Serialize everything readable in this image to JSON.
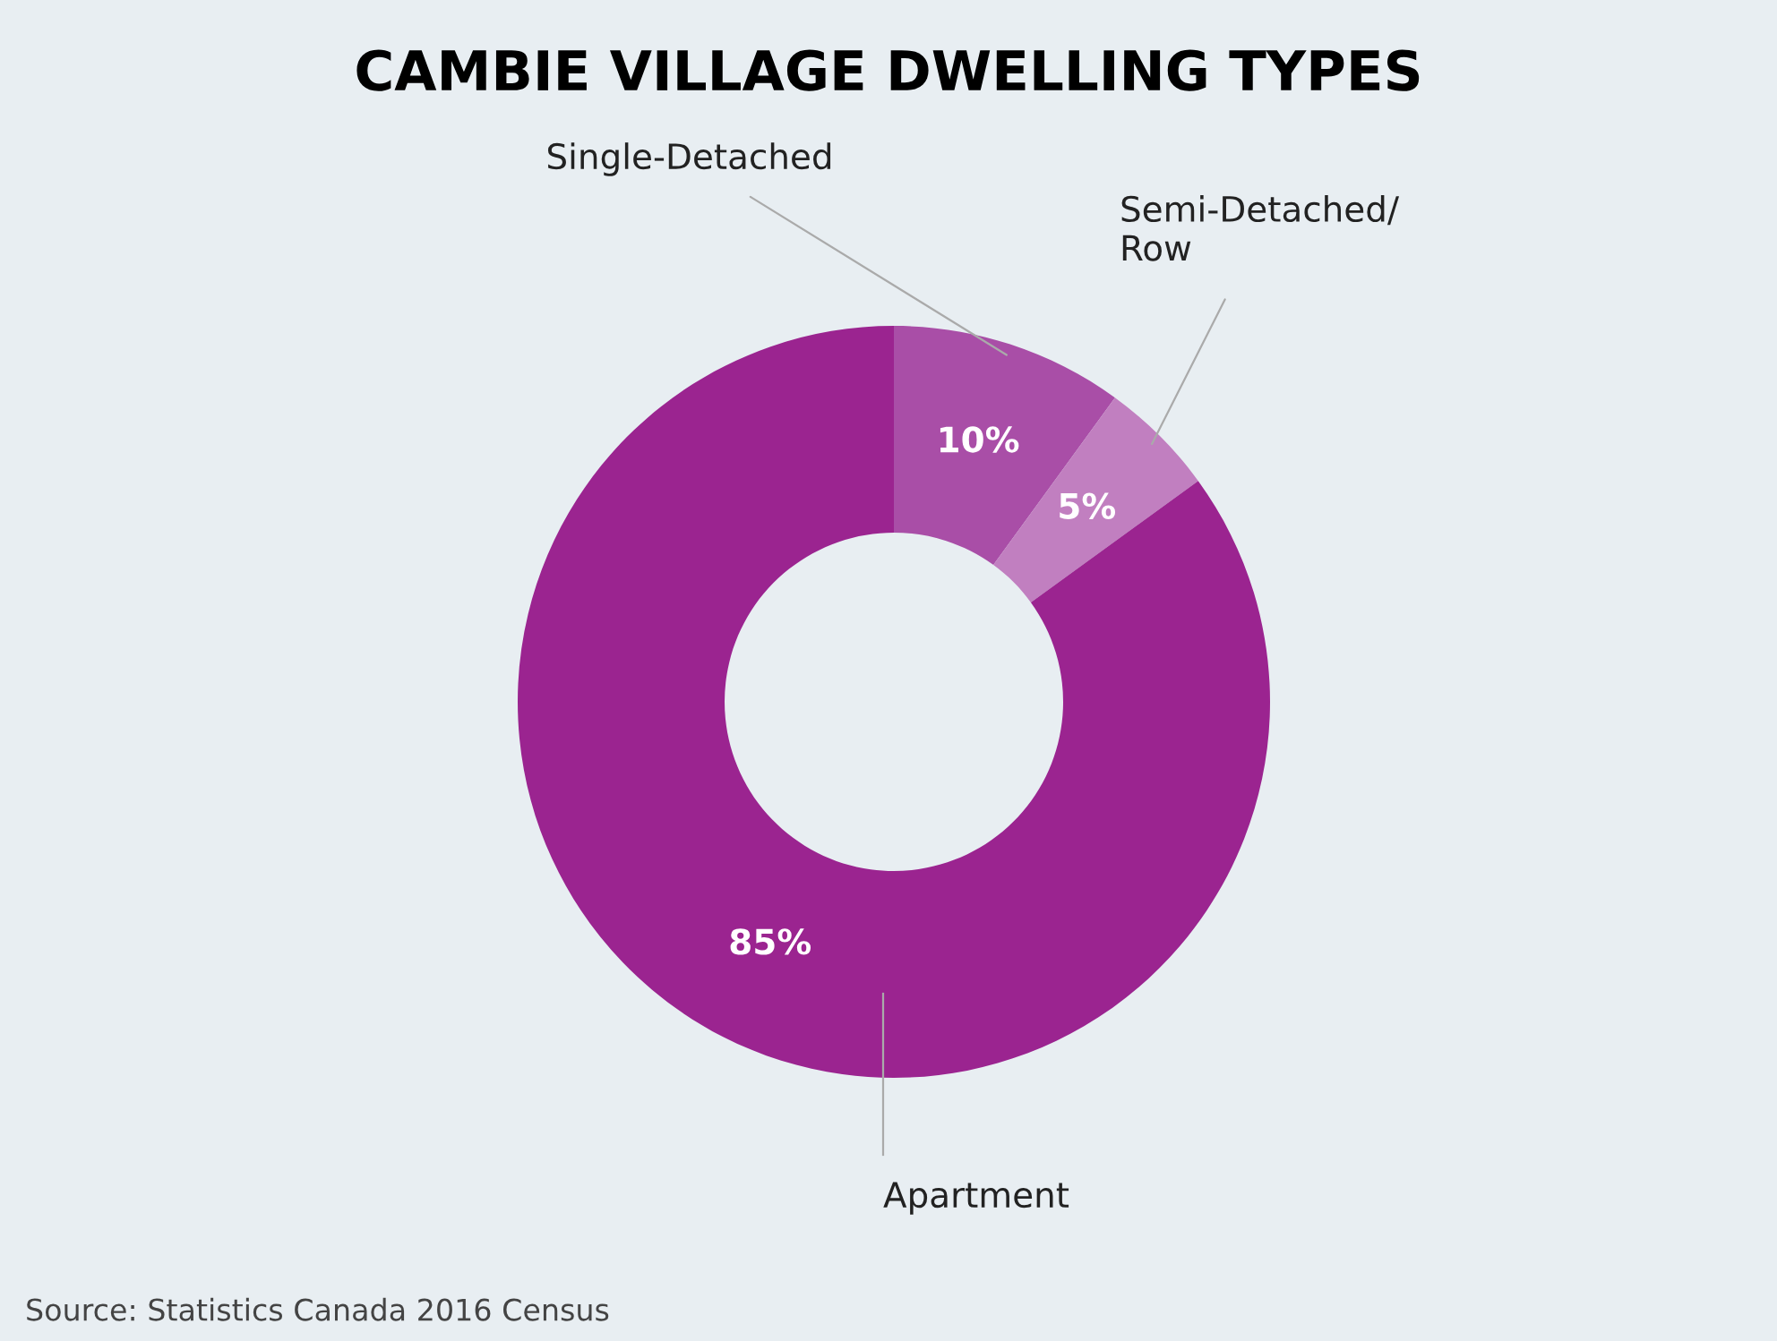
{
  "chart_data": {
    "type": "donut",
    "title": "CAMBIE VILLAGE DWELLING TYPES",
    "categories": [
      "Single-Detached",
      "Semi-Detached/\nRow",
      "Apartment"
    ],
    "values": [
      10,
      5,
      85
    ],
    "colors": [
      "#a94ea7",
      "#c17fc0",
      "#9b2490"
    ],
    "value_labels": [
      "10%",
      "5%",
      "85%"
    ],
    "legend": false,
    "annotations": [
      "Source: Statistics Canada 2016 Census"
    ]
  }
}
